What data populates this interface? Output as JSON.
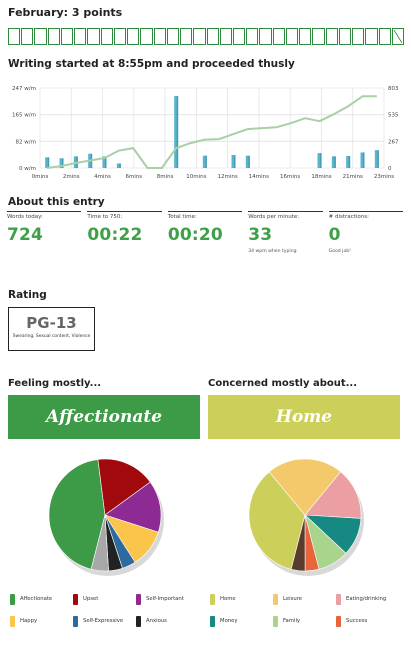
{
  "header": {
    "title": "February: 3 points"
  },
  "points": {
    "filled_count": 29,
    "extra_count": 1,
    "color": "#2e8b3e"
  },
  "chart_heading": "Writing started at 8:55pm and proceeded thusly",
  "chart_data": {
    "type": "bar",
    "x_ticks": [
      "0mins",
      "2mins",
      "4mins",
      "6mins",
      "8mins",
      "10mins",
      "12mins",
      "14mins",
      "16mins",
      "18mins",
      "21mins",
      "23mins"
    ],
    "y_left_ticks": [
      "247 w/m",
      "165 w/m",
      "82 w/m",
      "0 w/m"
    ],
    "y_right_ticks": [
      "803",
      "535",
      "267",
      "0"
    ],
    "ylim_left": [
      0,
      247
    ],
    "ylim_right": [
      0,
      803
    ],
    "grid": true,
    "series": [
      {
        "type": "bar",
        "axis": "left",
        "color": "#5ab4cc",
        "values": [
          33,
          30,
          36,
          44,
          36,
          14,
          0,
          0,
          0,
          222,
          0,
          38,
          0,
          40,
          38,
          0,
          0,
          0,
          0,
          46,
          36,
          37,
          48,
          55
        ]
      },
      {
        "type": "line",
        "axis": "right",
        "color": "#a8d0a4",
        "values": [
          0,
          20,
          50,
          75,
          100,
          175,
          200,
          0,
          0,
          200,
          250,
          285,
          290,
          340,
          390,
          400,
          410,
          450,
          500,
          470,
          540,
          620,
          720,
          720
        ]
      }
    ]
  },
  "entry": {
    "heading": "About this entry",
    "stats": [
      {
        "label": "Words today:",
        "value": "724",
        "note": ""
      },
      {
        "label": "Time to 750:",
        "value": "00:22",
        "note": ""
      },
      {
        "label": "Total time:",
        "value": "00:20",
        "note": ""
      },
      {
        "label": "Words per minute:",
        "value": "33",
        "note": "34 wpm when typing"
      },
      {
        "label": "# distractions:",
        "value": "0",
        "note": "Good job!"
      }
    ]
  },
  "rating": {
    "heading": "Rating",
    "value": "PG-13",
    "reason": "Swearing, Sexual content, Violence"
  },
  "feeling": {
    "heading": "Feeling mostly...",
    "top": "Affectionate",
    "color": "#3d9b48",
    "slices": [
      {
        "label": "Affectionate",
        "value": 44,
        "color": "#3d9b48"
      },
      {
        "label": "Upset",
        "value": 17,
        "color": "#a00a0d"
      },
      {
        "label": "Self-Important",
        "value": 15,
        "color": "#8e2a94"
      },
      {
        "label": "Happy",
        "value": 11,
        "color": "#fbc44a"
      },
      {
        "label": "Self-Expressive",
        "value": 4,
        "color": "#2e6a9e"
      },
      {
        "label": "Anxious",
        "value": 4,
        "color": "#222222"
      },
      {
        "label": "Other",
        "value": 5,
        "color": "#a8a8a8"
      }
    ],
    "legend": [
      "Affectionate",
      "Upset",
      "Self-Important",
      "Happy",
      "Self-Expressive",
      "Anxious"
    ]
  },
  "concern": {
    "heading": "Concerned mostly about...",
    "top": "Home",
    "color": "#ccd05a",
    "slices": [
      {
        "label": "Home",
        "value": 35,
        "color": "#ccd05a"
      },
      {
        "label": "Leisure",
        "value": 22,
        "color": "#f3c96b"
      },
      {
        "label": "Eating/drinking",
        "value": 15,
        "color": "#ec9fa3"
      },
      {
        "label": "Money",
        "value": 11,
        "color": "#168a82"
      },
      {
        "label": "Family",
        "value": 9,
        "color": "#a8d48c"
      },
      {
        "label": "Success",
        "value": 4,
        "color": "#e8643c"
      },
      {
        "label": "Other",
        "value": 4,
        "color": "#5a3c2c"
      }
    ],
    "legend": [
      "Home",
      "Leisure",
      "Eating/drinking",
      "Money",
      "Family",
      "Success"
    ]
  }
}
